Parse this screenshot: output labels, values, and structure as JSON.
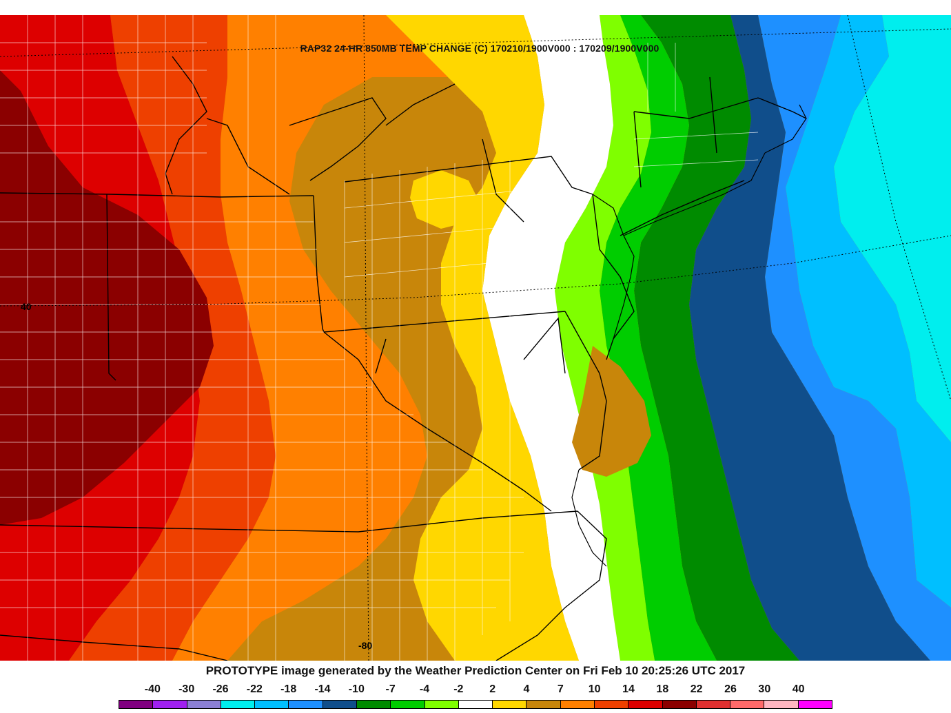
{
  "map": {
    "title": "RAP32 24-HR 850MB TEMP CHANGE (C) 170210/1900V000 : 170209/1900V000",
    "lat_label": "40",
    "lon_label": "-80",
    "background_hex": "#c8860a"
  },
  "footer": {
    "text": "PROTOTYPE image generated by the Weather Prediction Center on Fri Feb 10 20:25:26 UTC 2017"
  },
  "legend": {
    "labels": [
      "-40",
      "-30",
      "-26",
      "-22",
      "-18",
      "-14",
      "-10",
      "-7",
      "-4",
      "-2",
      "2",
      "4",
      "7",
      "10",
      "14",
      "18",
      "22",
      "26",
      "30",
      "40"
    ],
    "colors": [
      "#800080",
      "#a020f0",
      "#8b7fd4",
      "#00eeee",
      "#00bfff",
      "#1e90ff",
      "#104e8b",
      "#008b00",
      "#00cd00",
      "#7fff00",
      "#ffffff",
      "#ffd700",
      "#c8860a",
      "#ff8000",
      "#ee4000",
      "#dd0000",
      "#8b0000",
      "#e03030",
      "#ff6a6a",
      "#ffb6c1",
      "#ff00ff"
    ]
  },
  "bands": {
    "c_40": "#8b0000",
    "c_22": "#dd0000",
    "c_18": "#ee4000",
    "c_14": "#ff8000",
    "c_10": "#c8860a",
    "c_7": "#ffd700",
    "c_4": "#ffffff",
    "c_m2": "#7fff00",
    "c_m4": "#00cd00",
    "c_m7": "#008b00",
    "c_m10": "#104e8b",
    "c_m14": "#1e90ff",
    "c_m18": "#00bfff",
    "c_m22": "#00eeee"
  }
}
